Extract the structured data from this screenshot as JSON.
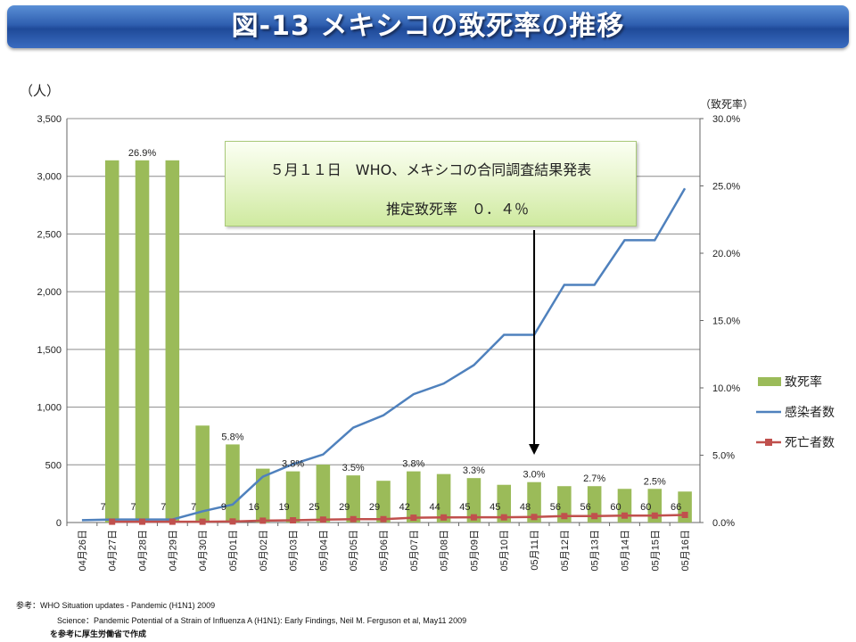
{
  "title": "図-13 メキシコの致死率の推移",
  "chart_data": {
    "type": "bar+line",
    "y_left_label": "（人）",
    "y_right_label": "（致死率）",
    "y_left_ticks": [
      "0",
      "500",
      "1,000",
      "1,500",
      "2,000",
      "2,500",
      "3,000",
      "3,500"
    ],
    "y_left_range": [
      0,
      3500
    ],
    "y_right_ticks": [
      "0.0%",
      "5.0%",
      "10.0%",
      "15.0%",
      "20.0%",
      "25.0%",
      "30.0%"
    ],
    "y_right_range": [
      0,
      30
    ],
    "categories": [
      "04月26日",
      "04月27日",
      "04月28日",
      "04月29日",
      "04月30日",
      "05月01日",
      "05月02日",
      "05月03日",
      "05月04日",
      "05月05日",
      "05月06日",
      "05月07日",
      "05月08日",
      "05月09日",
      "05月10日",
      "05月11日",
      "05月12日",
      "05月13日",
      "05月14日",
      "05月15日",
      "05月16日"
    ],
    "fatality_rate": [
      null,
      26.9,
      26.9,
      26.9,
      7.2,
      5.8,
      4.0,
      3.8,
      4.3,
      3.5,
      3.1,
      3.8,
      3.6,
      3.3,
      2.8,
      3.0,
      2.7,
      2.7,
      2.5,
      2.5,
      2.3
    ],
    "rate_labels": [
      null,
      null,
      "26.9%",
      null,
      null,
      "5.8%",
      null,
      "3.8%",
      null,
      "3.5%",
      null,
      "3.8%",
      null,
      "3.3%",
      null,
      "3.0%",
      null,
      "2.7%",
      null,
      "2.5%",
      null
    ],
    "infected": [
      20,
      26,
      26,
      26,
      97,
      156,
      397,
      506,
      590,
      822,
      929,
      1112,
      1204,
      1364,
      1626,
      1626,
      2059,
      2059,
      2446,
      2446,
      2895
    ],
    "deaths": [
      null,
      7,
      7,
      7,
      7,
      9,
      16,
      19,
      25,
      29,
      29,
      42,
      44,
      45,
      45,
      48,
      56,
      56,
      60,
      60,
      66
    ],
    "death_labels": [
      null,
      "7",
      "7",
      "7",
      "7",
      "9",
      "16",
      "19",
      "25",
      "29",
      "29",
      "42",
      "44",
      "45",
      "45",
      "48",
      "56",
      "56",
      "60",
      "60",
      "66"
    ],
    "legend": [
      {
        "name": "致死率",
        "color": "#9bbb59",
        "kind": "bar"
      },
      {
        "name": "感染者数",
        "color": "#4f81bd",
        "kind": "line"
      },
      {
        "name": "死亡者数",
        "color": "#c0504d",
        "kind": "line-marker"
      }
    ]
  },
  "annotation": {
    "line1": "５月１１日　WHO、メキシコの合同調査結果発表",
    "line2": "推定致死率　０．４％"
  },
  "sources": {
    "label": "参考：",
    "line1": "WHO Situation updates - Pandemic (H1N1) 2009",
    "line2_label": "Science：",
    "line2": "Pandemic Potential of a Strain of Influenza A (H1N1): Early Findings, Neil M. Ferguson et al, May11 2009",
    "line3": "を参考に厚生労働省で作成"
  }
}
